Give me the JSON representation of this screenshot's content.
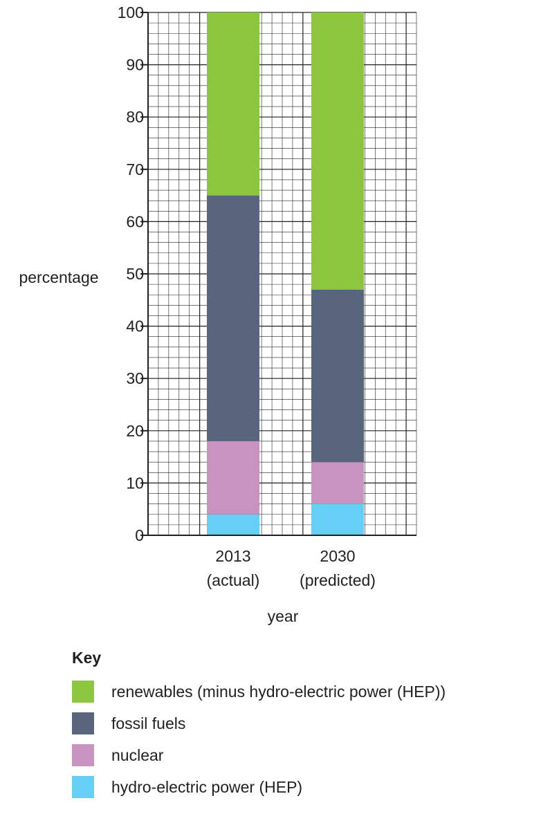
{
  "chart_data": {
    "type": "bar",
    "stacked": true,
    "categories": [
      "2013 (actual)",
      "2030 (predicted)"
    ],
    "category_lines": [
      [
        "2013",
        "(actual)"
      ],
      [
        "2030",
        "(predicted)"
      ]
    ],
    "series": [
      {
        "name": "hydro-electric power (HEP)",
        "color": "#66cff5",
        "values": [
          4,
          6
        ]
      },
      {
        "name": "nuclear",
        "color": "#c894bf",
        "values": [
          14,
          8
        ]
      },
      {
        "name": "fossil fuels",
        "color": "#58657d",
        "values": [
          47,
          33
        ]
      },
      {
        "name": "renewables (minus hydro-electric power (HEP))",
        "color": "#8cc63f",
        "values": [
          35,
          53
        ]
      }
    ],
    "xlabel": "year",
    "ylabel": "percentage",
    "ylim": [
      0,
      100
    ],
    "yticks": [
      "0",
      "10",
      "20",
      "30",
      "40",
      "50",
      "60",
      "70",
      "80",
      "90",
      "100"
    ],
    "grid": true
  },
  "key": {
    "title": "Key",
    "items": [
      {
        "label": "renewables (minus hydro-electric power (HEP))",
        "color": "#8cc63f"
      },
      {
        "label": "fossil fuels",
        "color": "#58657d"
      },
      {
        "label": "nuclear",
        "color": "#c894bf"
      },
      {
        "label": "hydro-electric power (HEP)",
        "color": "#66cff5"
      }
    ]
  }
}
